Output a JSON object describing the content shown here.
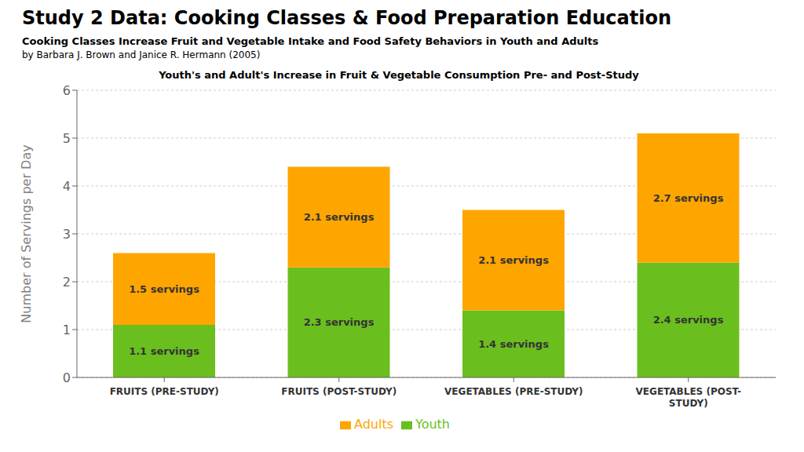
{
  "chart_data": {
    "type": "bar",
    "title": "Study 2 Data: Cooking Classes & Food Preparation Education",
    "subtitle": [
      "Cooking Classes Increase Fruit and Vegetable Intake and Food Safety Behaviors in Youth and Adults",
      "by Barbara J. Brown and Janice R. Hermann (2005)",
      "Youth's and Adult's Increase in Fruit & Vegetable Consumption Pre- and Post-Study"
    ],
    "ylabel": "Number of Servings per Day",
    "categories": [
      "FRUITS (PRE-STUDY)",
      "FRUITS (POST-STUDY)",
      "VEGETABLES (PRE-STUDY)",
      "VEGETABLES (POST-\nSTUDY)"
    ],
    "series": [
      {
        "name": "Youth",
        "color": "#6abf1e",
        "values": [
          1.1,
          2.3,
          1.4,
          2.4
        ],
        "value_labels": [
          "1.1 servings",
          "2.3 servings",
          "1.4 servings",
          "2.4 servings"
        ]
      },
      {
        "name": "Adults",
        "color": "#ffa500",
        "values": [
          1.5,
          2.1,
          2.1,
          2.7
        ],
        "value_labels": [
          "1.5 servings",
          "2.1 servings",
          "2.1 servings",
          "2.7 servings"
        ]
      }
    ],
    "ylim": [
      0,
      6
    ],
    "yticks": [
      0,
      1,
      2,
      3,
      4,
      5,
      6
    ],
    "stacked": true,
    "data_labels": true,
    "grid": true,
    "legend": "bottom"
  }
}
